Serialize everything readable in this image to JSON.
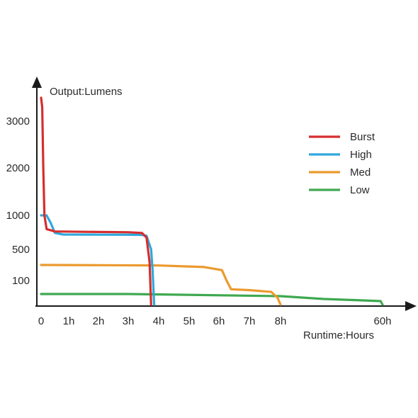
{
  "chart_data": {
    "type": "line",
    "title": "",
    "xlabel": "Runtime:Hours",
    "ylabel": "Output:Lumens",
    "x_unit": "hours",
    "y_unit": "lumens",
    "x_scale": "non-linear (axis compressed between 8h and 60h)",
    "y_scale": "non-linear",
    "x_ticks": [
      {
        "value": 0,
        "label": "0"
      },
      {
        "value": 1,
        "label": "1h"
      },
      {
        "value": 2,
        "label": "2h"
      },
      {
        "value": 3,
        "label": "3h"
      },
      {
        "value": 4,
        "label": "4h"
      },
      {
        "value": 5,
        "label": "5h"
      },
      {
        "value": 6,
        "label": "6h"
      },
      {
        "value": 7,
        "label": "7h"
      },
      {
        "value": 8,
        "label": "8h"
      },
      {
        "value": 60,
        "label": "60h"
      }
    ],
    "y_ticks": [
      {
        "value": 100,
        "label": "100"
      },
      {
        "value": 500,
        "label": "500"
      },
      {
        "value": 1000,
        "label": "1000"
      },
      {
        "value": 2000,
        "label": "2000"
      },
      {
        "value": 3000,
        "label": "3000"
      }
    ],
    "legend_position": "right",
    "grid": false,
    "series": [
      {
        "name": "Burst",
        "color": "#d62e2e",
        "points": [
          [
            0,
            3500
          ],
          [
            0.04,
            3300
          ],
          [
            0.08,
            2000
          ],
          [
            0.12,
            1000
          ],
          [
            0.2,
            820
          ],
          [
            0.5,
            790
          ],
          [
            1.5,
            785
          ],
          [
            3,
            780
          ],
          [
            3.45,
            770
          ],
          [
            3.6,
            700
          ],
          [
            3.7,
            300
          ],
          [
            3.75,
            0
          ]
        ]
      },
      {
        "name": "High",
        "color": "#2fa8dc",
        "points": [
          [
            0,
            1000
          ],
          [
            0.2,
            1000
          ],
          [
            0.35,
            900
          ],
          [
            0.5,
            770
          ],
          [
            0.8,
            750
          ],
          [
            2,
            748
          ],
          [
            3.4,
            745
          ],
          [
            3.6,
            730
          ],
          [
            3.75,
            500
          ],
          [
            3.8,
            200
          ],
          [
            3.85,
            0
          ]
        ]
      },
      {
        "name": "Med",
        "color": "#eb9a2e",
        "points": [
          [
            0,
            250
          ],
          [
            2,
            248
          ],
          [
            4,
            245
          ],
          [
            5.5,
            230
          ],
          [
            6.1,
            200
          ],
          [
            6.25,
            100
          ],
          [
            6.4,
            50
          ],
          [
            7,
            45
          ],
          [
            7.7,
            35
          ],
          [
            7.9,
            10
          ],
          [
            8,
            0
          ]
        ]
      },
      {
        "name": "Low",
        "color": "#3fa850",
        "points": [
          [
            0,
            15
          ],
          [
            3,
            15
          ],
          [
            8,
            12
          ],
          [
            30,
            8
          ],
          [
            50,
            6
          ],
          [
            59,
            5
          ],
          [
            60,
            0
          ]
        ]
      }
    ]
  }
}
